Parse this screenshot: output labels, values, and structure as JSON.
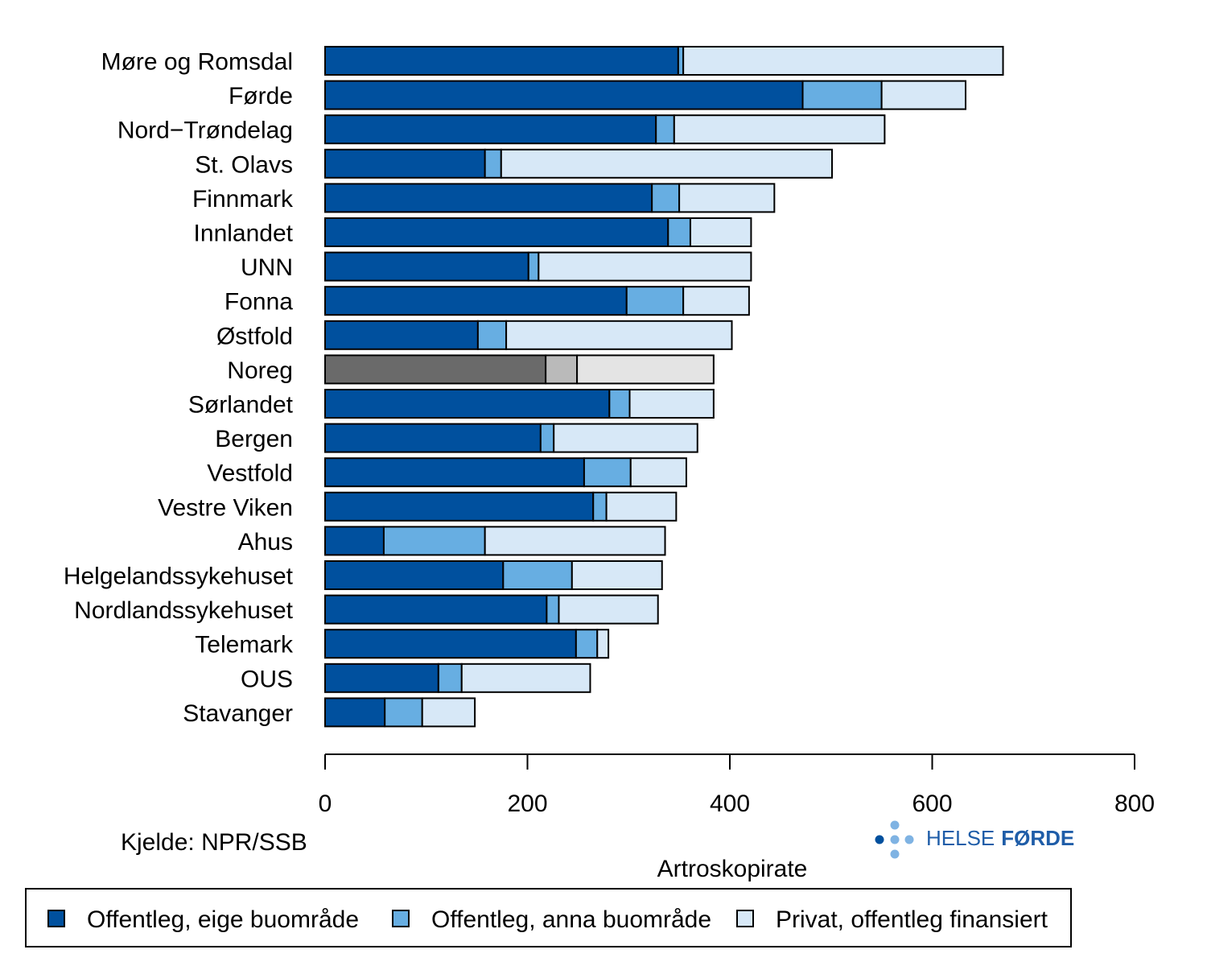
{
  "chart_data": {
    "type": "bar",
    "orientation": "horizontal",
    "stacked": true,
    "title": "",
    "xlabel": "Artroskopirate",
    "ylabel": "",
    "xlim": [
      0,
      800
    ],
    "xticks": [
      0,
      200,
      400,
      600,
      800
    ],
    "grid": false,
    "legend_position": "bottom",
    "categories": [
      "Møre og Romsdal",
      "Førde",
      "Nord−Trøndelag",
      "St. Olavs",
      "Finnmark",
      "Innlandet",
      "UNN",
      "Fonna",
      "Østfold",
      "Noreg",
      "Sørlandet",
      "Bergen",
      "Vestfold",
      "Vestre Viken",
      "Ahus",
      "Helgelandssykehuset",
      "Nordlandssykehuset",
      "Telemark",
      "OUS",
      "Stavanger"
    ],
    "highlight_category": "Noreg",
    "series": [
      {
        "name": "Offentleg, eige buområde",
        "color": "#00509e",
        "highlight_color": "#6a6a6a",
        "values": [
          349,
          472,
          327,
          158,
          323,
          339,
          201,
          298,
          151,
          218,
          281,
          213,
          256,
          265,
          58,
          176,
          219,
          248,
          112,
          59
        ]
      },
      {
        "name": "Offentleg, anna buområde",
        "color": "#67aee2",
        "highlight_color": "#bababa",
        "values": [
          5,
          78,
          18,
          16,
          27,
          22,
          10,
          56,
          28,
          31,
          20,
          13,
          46,
          13,
          100,
          68,
          12,
          21,
          23,
          37
        ]
      },
      {
        "name": "Privat, offentleg finansiert",
        "color": "#d7e8f7",
        "highlight_color": "#e4e4e4",
        "values": [
          316,
          83,
          208,
          327,
          94,
          60,
          210,
          65,
          223,
          135,
          83,
          142,
          55,
          69,
          178,
          89,
          98,
          11,
          127,
          52
        ]
      }
    ]
  },
  "source": "Kjelde: NPR/SSB",
  "logo": {
    "word1": "HELSE",
    "word2": "FØRDE",
    "color": "#1f5da8",
    "dot_light": "#7fb3e3",
    "dot_dark": "#00509e"
  }
}
